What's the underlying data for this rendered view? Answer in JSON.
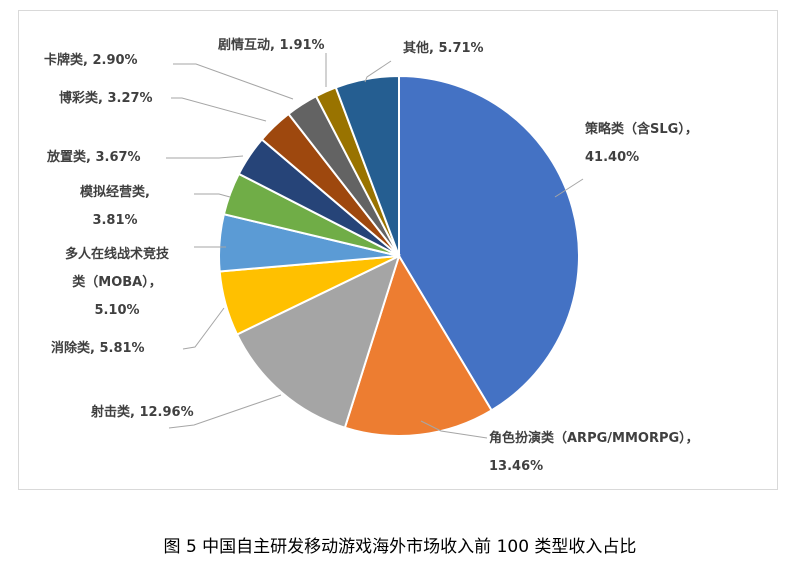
{
  "chart_data": {
    "type": "pie",
    "title": "",
    "series": [
      {
        "name": "",
        "categories": [
          "策略类（含SLG）",
          "角色扮演类（ARPG/MMORPG）",
          "射击类",
          "消除类",
          "多人在线战术竞技类（MOBA）",
          "模拟经营类",
          "放置类",
          "博彩类",
          "卡牌类",
          "剧情互动",
          "其他"
        ],
        "values": [
          41.4,
          13.46,
          12.96,
          5.81,
          5.1,
          3.81,
          3.67,
          3.27,
          2.9,
          1.91,
          5.71
        ]
      }
    ],
    "colors": [
      "#4472c4",
      "#ed7d31",
      "#a5a5a5",
      "#ffc000",
      "#5b9bd5",
      "#70ad47",
      "#264478",
      "#9e480e",
      "#636363",
      "#997300",
      "#255e91"
    ],
    "data_labels": [
      [
        "策略类（含SLG），",
        "41.40%"
      ],
      [
        "角色扮演类（ARPG/MMORPG），",
        "13.46%"
      ],
      [
        "射击类, 12.96%"
      ],
      [
        "消除类, 5.81%"
      ],
      [
        "多人在线战术竞技",
        "类（MOBA），",
        "5.10%"
      ],
      [
        "模拟经营类,",
        "3.81%"
      ],
      [
        "放置类, 3.67%"
      ],
      [
        "博彩类, 3.27%"
      ],
      [
        "卡牌类, 2.90%"
      ],
      [
        "剧情互动, 1.91%"
      ],
      [
        "其他, 5.71%"
      ]
    ],
    "legend": "none"
  },
  "caption": "图 5 中国自主研发移动游戏海外市场收入前 100 类型收入占比"
}
